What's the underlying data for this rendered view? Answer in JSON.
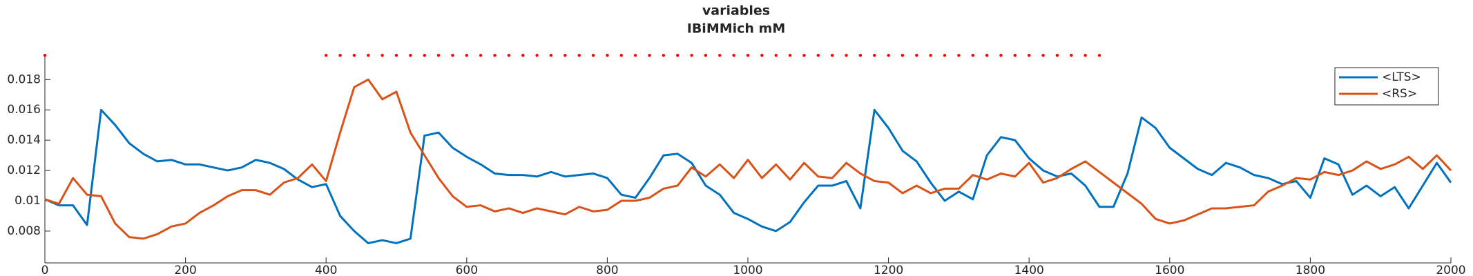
{
  "chart_data": {
    "type": "line",
    "title": "variables",
    "subtitle": "IBiMMich mM",
    "x": [
      0,
      20,
      40,
      60,
      80,
      100,
      120,
      140,
      160,
      180,
      200,
      220,
      240,
      260,
      280,
      300,
      320,
      340,
      360,
      380,
      400,
      420,
      440,
      460,
      480,
      500,
      520,
      540,
      560,
      580,
      600,
      620,
      640,
      660,
      680,
      700,
      720,
      740,
      760,
      780,
      800,
      820,
      840,
      860,
      880,
      900,
      920,
      940,
      960,
      980,
      1000,
      1020,
      1040,
      1060,
      1080,
      1100,
      1120,
      1140,
      1160,
      1180,
      1200,
      1220,
      1240,
      1260,
      1280,
      1300,
      1320,
      1340,
      1360,
      1380,
      1400,
      1420,
      1440,
      1460,
      1480,
      1500,
      1520,
      1540,
      1560,
      1580,
      1600,
      1620,
      1640,
      1660,
      1680,
      1700,
      1720,
      1740,
      1760,
      1780,
      1800,
      1820,
      1840,
      1860,
      1880,
      1900,
      1920,
      1940,
      1960,
      1980,
      2000
    ],
    "series": [
      {
        "name": "<LTS>",
        "color": "#0072bd",
        "values": [
          0.0101,
          0.0097,
          0.0097,
          0.0084,
          0.016,
          0.015,
          0.0138,
          0.0131,
          0.0126,
          0.0127,
          0.0124,
          0.0124,
          0.0122,
          0.012,
          0.0122,
          0.0127,
          0.0125,
          0.0121,
          0.0114,
          0.0109,
          0.0111,
          0.009,
          0.008,
          0.0072,
          0.0074,
          0.0072,
          0.0075,
          0.0143,
          0.0145,
          0.0135,
          0.0129,
          0.0124,
          0.0118,
          0.0117,
          0.0117,
          0.0116,
          0.0119,
          0.0116,
          0.0117,
          0.0118,
          0.0115,
          0.0104,
          0.0102,
          0.0115,
          0.013,
          0.0131,
          0.0125,
          0.011,
          0.0104,
          0.0092,
          0.0088,
          0.0083,
          0.008,
          0.0086,
          0.0099,
          0.011,
          0.011,
          0.0113,
          0.0095,
          0.016,
          0.0148,
          0.0133,
          0.0126,
          0.0112,
          0.01,
          0.0106,
          0.0101,
          0.013,
          0.0142,
          0.014,
          0.0128,
          0.012,
          0.0116,
          0.0118,
          0.011,
          0.0096,
          0.0096,
          0.0118,
          0.0155,
          0.0148,
          0.0135,
          0.0128,
          0.0121,
          0.0117,
          0.0125,
          0.0122,
          0.0117,
          0.0115,
          0.0111,
          0.0113,
          0.0102,
          0.0128,
          0.0124,
          0.0104,
          0.011,
          0.0103,
          0.0109,
          0.0095,
          0.011,
          0.0125,
          0.0112
        ]
      },
      {
        "name": "<RS>",
        "color": "#d95319",
        "values": [
          0.0101,
          0.0098,
          0.0115,
          0.0104,
          0.0103,
          0.0085,
          0.0076,
          0.0075,
          0.0078,
          0.0083,
          0.0085,
          0.0092,
          0.0097,
          0.0103,
          0.0107,
          0.0107,
          0.0104,
          0.0112,
          0.0115,
          0.0124,
          0.0113,
          0.0145,
          0.0175,
          0.018,
          0.0167,
          0.0172,
          0.0145,
          0.013,
          0.0115,
          0.0103,
          0.0096,
          0.0097,
          0.0093,
          0.0095,
          0.0092,
          0.0095,
          0.0093,
          0.0091,
          0.0096,
          0.0093,
          0.0094,
          0.01,
          0.01,
          0.0102,
          0.0108,
          0.011,
          0.0122,
          0.0116,
          0.0124,
          0.0115,
          0.0127,
          0.0115,
          0.0124,
          0.0114,
          0.0125,
          0.0116,
          0.0115,
          0.0125,
          0.0118,
          0.0113,
          0.0112,
          0.0105,
          0.011,
          0.0105,
          0.0108,
          0.0108,
          0.0117,
          0.0114,
          0.0118,
          0.0116,
          0.0125,
          0.0112,
          0.0115,
          0.0121,
          0.0126,
          0.0119,
          0.0112,
          0.0105,
          0.0098,
          0.0088,
          0.0085,
          0.0087,
          0.0091,
          0.0095,
          0.0095,
          0.0096,
          0.0097,
          0.0106,
          0.011,
          0.0115,
          0.0114,
          0.0119,
          0.0117,
          0.012,
          0.0126,
          0.0121,
          0.0124,
          0.0129,
          0.0121,
          0.013,
          0.012
        ]
      }
    ],
    "markers": {
      "color": "#ff0000",
      "value": 0.0196,
      "x": [
        0,
        400,
        420,
        440,
        460,
        480,
        500,
        520,
        540,
        560,
        580,
        600,
        620,
        640,
        660,
        680,
        700,
        720,
        740,
        760,
        780,
        800,
        820,
        840,
        860,
        880,
        900,
        920,
        940,
        960,
        980,
        1000,
        1020,
        1040,
        1060,
        1080,
        1100,
        1120,
        1140,
        1160,
        1180,
        1200,
        1220,
        1240,
        1260,
        1280,
        1300,
        1320,
        1340,
        1360,
        1380,
        1400,
        1420,
        1440,
        1460,
        1480,
        1500
      ]
    },
    "xlim": [
      0,
      2000
    ],
    "xticks": [
      0,
      200,
      400,
      600,
      800,
      1000,
      1200,
      1400,
      1600,
      1800,
      2000
    ],
    "ylim": [
      0.0059,
      0.0197
    ],
    "yticks": [
      0.008,
      0.01,
      0.012,
      0.014,
      0.016,
      0.018
    ],
    "legend": "northeast"
  }
}
